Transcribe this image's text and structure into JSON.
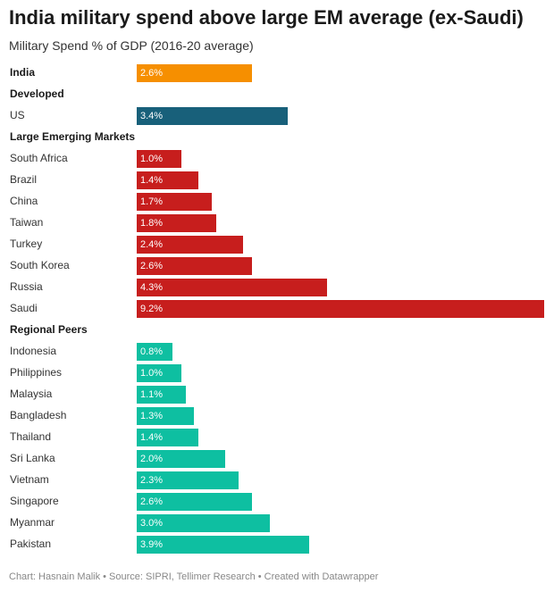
{
  "title": "India military spend above large EM average (ex-Saudi)",
  "subtitle": "Military Spend % of GDP (2016-20 average)",
  "footer": "Chart: Hasnain Malik • Source: SIPRI, Tellimer Research • Created with Datawrapper",
  "colors": {
    "India": "#f68f00",
    "Developed": "#18607a",
    "Large Emerging Markets": "#c71e1d",
    "Regional Peers": "#0ebfa1"
  },
  "chart_data": {
    "type": "bar",
    "orientation": "horizontal",
    "title": "India military spend above large EM average (ex-Saudi)",
    "subtitle": "Military Spend % of GDP (2016-20 average)",
    "xlim": [
      0,
      9.2
    ],
    "unit": "%",
    "rows": [
      {
        "kind": "bar",
        "group": "India",
        "label": "India",
        "value": 2.6,
        "display": "2.6%",
        "bold": true
      },
      {
        "kind": "header",
        "label": "Developed"
      },
      {
        "kind": "bar",
        "group": "Developed",
        "label": "US",
        "value": 3.4,
        "display": "3.4%"
      },
      {
        "kind": "header",
        "label": "Large Emerging Markets"
      },
      {
        "kind": "bar",
        "group": "Large Emerging Markets",
        "label": "South Africa",
        "value": 1.0,
        "display": "1.0%"
      },
      {
        "kind": "bar",
        "group": "Large Emerging Markets",
        "label": "Brazil",
        "value": 1.4,
        "display": "1.4%"
      },
      {
        "kind": "bar",
        "group": "Large Emerging Markets",
        "label": "China",
        "value": 1.7,
        "display": "1.7%"
      },
      {
        "kind": "bar",
        "group": "Large Emerging Markets",
        "label": "Taiwan",
        "value": 1.8,
        "display": "1.8%"
      },
      {
        "kind": "bar",
        "group": "Large Emerging Markets",
        "label": "Turkey",
        "value": 2.4,
        "display": "2.4%"
      },
      {
        "kind": "bar",
        "group": "Large Emerging Markets",
        "label": "South Korea",
        "value": 2.6,
        "display": "2.6%"
      },
      {
        "kind": "bar",
        "group": "Large Emerging Markets",
        "label": "Russia",
        "value": 4.3,
        "display": "4.3%"
      },
      {
        "kind": "bar",
        "group": "Large Emerging Markets",
        "label": "Saudi",
        "value": 9.2,
        "display": "9.2%"
      },
      {
        "kind": "header",
        "label": "Regional Peers"
      },
      {
        "kind": "bar",
        "group": "Regional Peers",
        "label": "Indonesia",
        "value": 0.8,
        "display": "0.8%"
      },
      {
        "kind": "bar",
        "group": "Regional Peers",
        "label": "Philippines",
        "value": 1.0,
        "display": "1.0%"
      },
      {
        "kind": "bar",
        "group": "Regional Peers",
        "label": "Malaysia",
        "value": 1.1,
        "display": "1.1%"
      },
      {
        "kind": "bar",
        "group": "Regional Peers",
        "label": "Bangladesh",
        "value": 1.3,
        "display": "1.3%"
      },
      {
        "kind": "bar",
        "group": "Regional Peers",
        "label": "Thailand",
        "value": 1.4,
        "display": "1.4%"
      },
      {
        "kind": "bar",
        "group": "Regional Peers",
        "label": "Sri Lanka",
        "value": 2.0,
        "display": "2.0%"
      },
      {
        "kind": "bar",
        "group": "Regional Peers",
        "label": "Vietnam",
        "value": 2.3,
        "display": "2.3%"
      },
      {
        "kind": "bar",
        "group": "Regional Peers",
        "label": "Singapore",
        "value": 2.6,
        "display": "2.6%"
      },
      {
        "kind": "bar",
        "group": "Regional Peers",
        "label": "Myanmar",
        "value": 3.0,
        "display": "3.0%"
      },
      {
        "kind": "bar",
        "group": "Regional Peers",
        "label": "Pakistan",
        "value": 3.9,
        "display": "3.9%"
      }
    ]
  }
}
